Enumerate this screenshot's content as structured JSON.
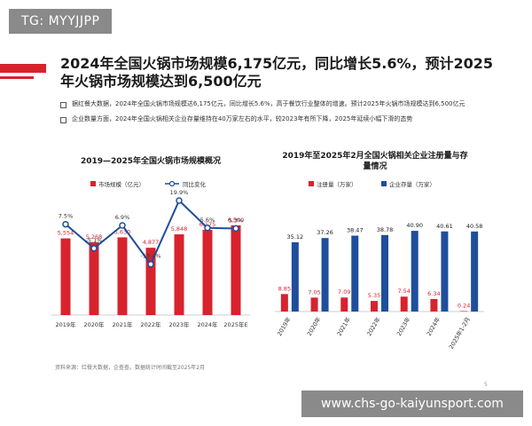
{
  "tag": "TG: MYYJJPP",
  "title": "2024年全国火锅市场规模6,175亿元，同比增长5.6%，预计2025年火锅市场规模达到6,500亿元",
  "bullets": [
    "据红餐大数据，2024年全国火锅市场规模达6,175亿元，同比增长5.6%，高于餐饮行业整体的增速。预计2025年火锅市场规模达到6,500亿元",
    "企业数量方面，2024年全国火锅相关企业存量维持在40万家左右的水平，较2023年有所下降，2025年延续小幅下滑的态势"
  ],
  "source": "资料来源：红餐大数据，企查查。数据统计时间截至2025年2月",
  "page_number": "5",
  "footer": "www.chs-go-kaiyunsport.com",
  "colors": {
    "red": "#d7232e",
    "blue": "#1f4e9c",
    "accent": "#d7232e"
  },
  "chart_data": [
    {
      "type": "bar",
      "title": "2019—2025年全国火锅市场规模概况",
      "categories": [
        "2019年",
        "2020年",
        "2021年",
        "2022年",
        "2023年",
        "2024年",
        "2025年E"
      ],
      "series": [
        {
          "name": "市场规模（亿元）",
          "type": "bar",
          "values": [
            5554,
            5268,
            5630,
            4877,
            5848,
            6175,
            6500
          ],
          "labels": [
            "5,554",
            "5,268",
            "5,630",
            "4,877",
            "5,848",
            "6,175",
            "6,500"
          ]
        },
        {
          "name": "同比变化",
          "type": "line",
          "values": [
            7.5,
            -5.1,
            6.9,
            -13.4,
            19.9,
            5.6,
            5.3
          ],
          "labels": [
            "7.5%",
            "-5.1%",
            "6.9%",
            "-13.4%",
            "19.9%",
            "5.6%",
            "5.3%"
          ]
        }
      ],
      "ylim": [
        0,
        9000
      ],
      "line_ylim": [
        -40,
        25
      ],
      "legend": "top"
    },
    {
      "type": "bar",
      "title": "2019年至2025年2月全国火锅相关企业注册量与存量情况",
      "categories": [
        "2019年",
        "2020年",
        "2021年",
        "2022年",
        "2023年",
        "2024年",
        "2025年1-2月"
      ],
      "series": [
        {
          "name": "注册量（万家）",
          "values": [
            8.85,
            7.05,
            7.09,
            5.35,
            7.54,
            6.34,
            0.24
          ],
          "labels": [
            "8.85",
            "7.05",
            "7.09",
            "5.35",
            "7.54",
            "6.34",
            "0.24"
          ]
        },
        {
          "name": "企业存量（万家）",
          "values": [
            35.12,
            37.26,
            38.47,
            38.78,
            40.9,
            40.61,
            40.58
          ],
          "labels": [
            "35.12",
            "37.26",
            "38.47",
            "38.78",
            "40.90",
            "40.61",
            "40.58"
          ]
        }
      ],
      "ylim": [
        0,
        45
      ],
      "legend": "top"
    }
  ]
}
